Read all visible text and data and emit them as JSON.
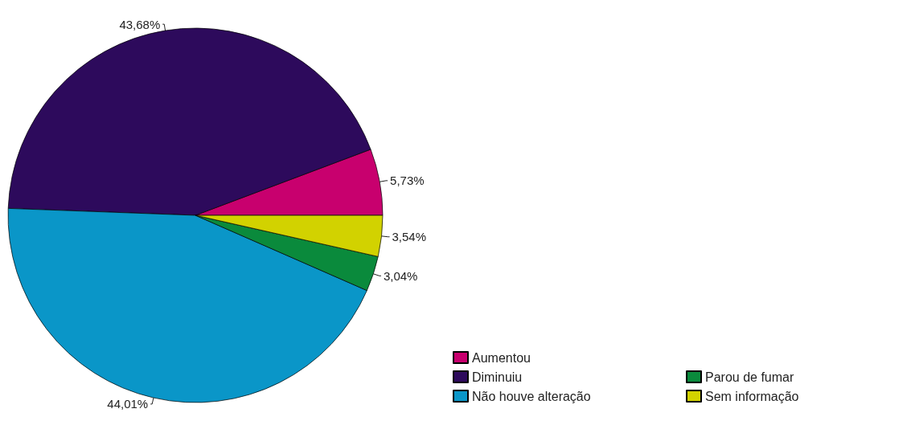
{
  "chart_data": {
    "type": "pie",
    "categories": [
      "Aumentou",
      "Diminuiu",
      "Não houve alteração",
      "Parou de fumar",
      "Sem informação"
    ],
    "values": [
      5.73,
      43.68,
      44.01,
      3.04,
      3.54
    ],
    "value_labels": [
      "5,73%",
      "43,68%",
      "44,01%",
      "3,04%",
      "3,54%"
    ],
    "colors": [
      "#c8006e",
      "#2d0a5c",
      "#0a96c8",
      "#0a8a3c",
      "#d2d200"
    ],
    "legend": "bottom right"
  }
}
